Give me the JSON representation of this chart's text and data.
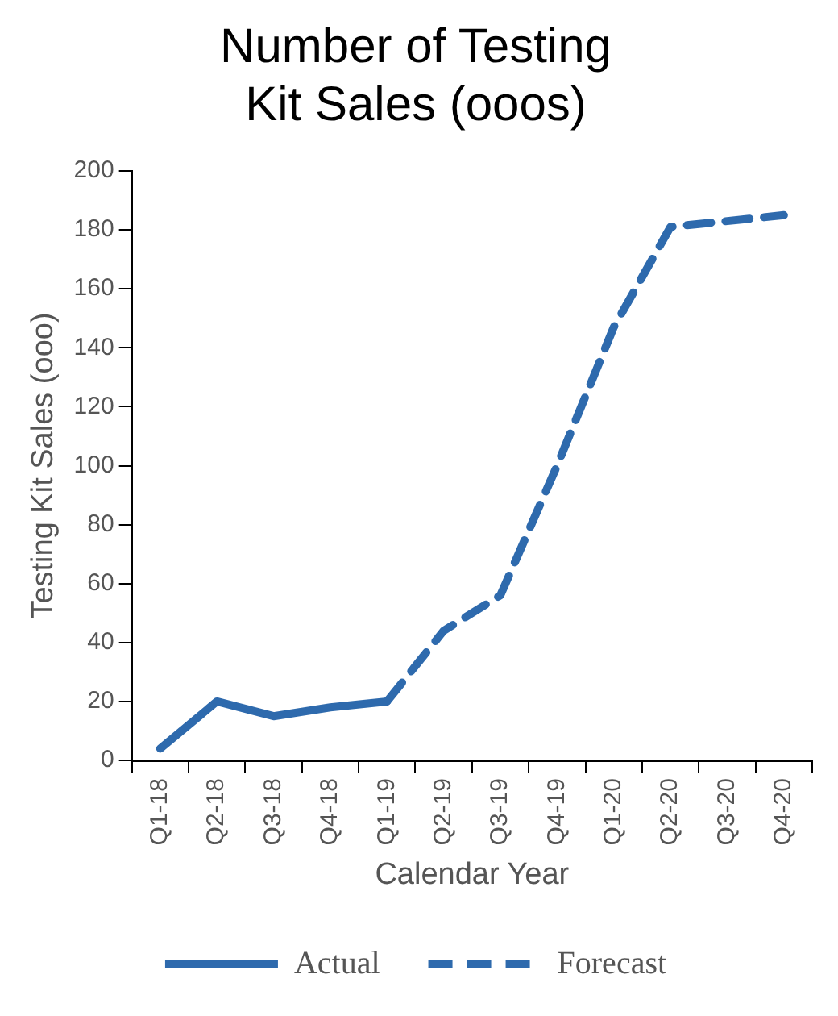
{
  "chart_data": {
    "type": "line",
    "title": "Number of Testing Kit Sales (ooos)",
    "xlabel": "Calendar Year",
    "ylabel": "Testing Kit Sales (ooo)",
    "categories": [
      "Q1-18",
      "Q2-18",
      "Q3-18",
      "Q4-18",
      "Q1-19",
      "Q2-19",
      "Q3-19",
      "Q4-19",
      "Q1-20",
      "Q2-20",
      "Q3-20",
      "Q4-20"
    ],
    "series": [
      {
        "name": "Actual",
        "color": "#2e6aad",
        "line_style": "solid",
        "values": [
          4,
          20,
          15,
          18,
          20,
          null,
          null,
          null,
          null,
          null,
          null,
          null
        ]
      },
      {
        "name": "Forecast",
        "color": "#2e6aad",
        "line_style": "dashed",
        "values": [
          null,
          null,
          null,
          null,
          20,
          44,
          56,
          100,
          147,
          181,
          183,
          185
        ]
      }
    ],
    "ylim": [
      0,
      200
    ],
    "yticks": [
      0,
      20,
      40,
      60,
      80,
      100,
      120,
      140,
      160,
      180,
      200
    ],
    "grid": false,
    "legend": "bottom",
    "marker": "none"
  }
}
